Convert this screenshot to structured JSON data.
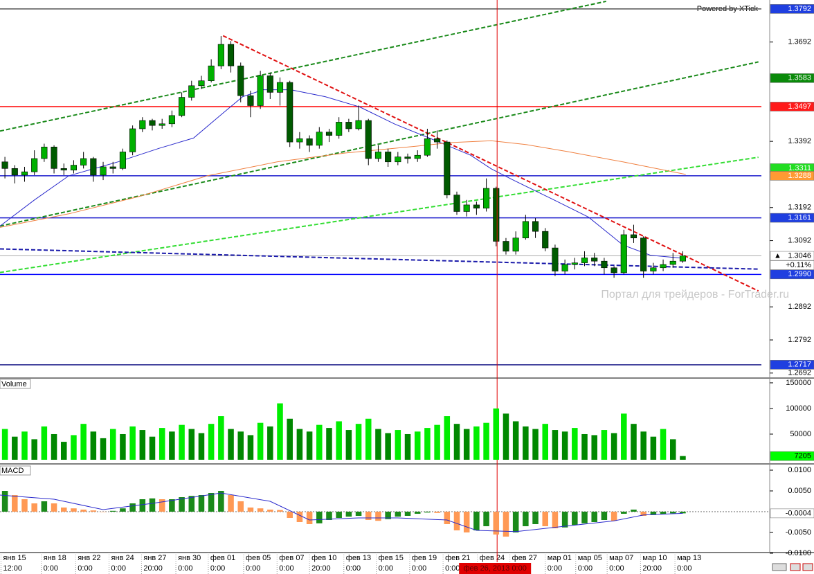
{
  "chart_data": [
    {
      "type": "candlestick",
      "credit": "Powered by XTick",
      "watermark": "Портал для трейдеров - ForTrader.ru",
      "xlim": [
        -0.5,
        77
      ],
      "xticks": [
        {
          "value": -0.4,
          "label": "янв 15"
        },
        {
          "value": 3.7,
          "label": "янв 18"
        },
        {
          "value": 7.2,
          "label": "янв 22"
        },
        {
          "value": 10.6,
          "label": "янв 24"
        },
        {
          "value": 13.9,
          "label": "янв 27"
        },
        {
          "value": 17.4,
          "label": "янв 30"
        },
        {
          "value": 20.7,
          "label": "фев 01"
        },
        {
          "value": 24.3,
          "label": "фев 05"
        },
        {
          "value": 27.7,
          "label": "фев 07"
        },
        {
          "value": 31,
          "label": "фев 10"
        },
        {
          "value": 34.5,
          "label": "фев 13"
        },
        {
          "value": 37.8,
          "label": "фев 15"
        },
        {
          "value": 41.2,
          "label": "фев 19"
        },
        {
          "value": 44.6,
          "label": "фев 21"
        },
        {
          "value": 48.1,
          "label": "фев 24"
        },
        {
          "value": 51.4,
          "label": "фев 27"
        },
        {
          "value": 55,
          "label": "мар 01"
        },
        {
          "value": 58.1,
          "label": "мар 05"
        },
        {
          "value": 61.3,
          "label": "мар 07"
        },
        {
          "value": 64.7,
          "label": "мар 10"
        },
        {
          "value": 68.2,
          "label": "мар 13"
        }
      ],
      "xticks_time": [
        {
          "value": -0.4,
          "label": "12:00"
        },
        {
          "value": 3.7,
          "label": "0:00"
        },
        {
          "value": 7.2,
          "label": "0:00"
        },
        {
          "value": 10.6,
          "label": "0:00"
        },
        {
          "value": 13.9,
          "label": "20:00"
        },
        {
          "value": 17.4,
          "label": "0:00"
        },
        {
          "value": 20.7,
          "label": "0:00"
        },
        {
          "value": 24.3,
          "label": "0:00"
        },
        {
          "value": 27.7,
          "label": "0:00"
        },
        {
          "value": 31,
          "label": "20:00"
        },
        {
          "value": 34.5,
          "label": "0:00"
        },
        {
          "value": 37.8,
          "label": "0:00"
        },
        {
          "value": 41.2,
          "label": "0:00"
        },
        {
          "value": 44.6,
          "label": "0:00"
        },
        {
          "value": 55,
          "label": "0:00"
        },
        {
          "value": 58.1,
          "label": "0:00"
        },
        {
          "value": 61.3,
          "label": "0:00"
        },
        {
          "value": 64.7,
          "label": "20:00"
        },
        {
          "value": 68.2,
          "label": "0:00"
        }
      ],
      "cursor": {
        "x": 50.1,
        "label": "фев 26, 2013 0:00",
        "color": "#e00000"
      },
      "ylim": [
        1.2679,
        1.3819
      ],
      "yticks": [
        1.3692,
        1.3392,
        1.3192,
        1.3092,
        1.2892,
        1.2792,
        1.2692
      ],
      "up_color": "#00b000",
      "down_color": "#005a00",
      "open": [
        1.333,
        1.331,
        1.329,
        1.33,
        1.334,
        1.3375,
        1.331,
        1.3305,
        1.332,
        1.334,
        1.329,
        1.3315,
        1.331,
        1.336,
        1.343,
        1.3455,
        1.344,
        1.3445,
        1.347,
        1.3525,
        1.356,
        1.3575,
        1.362,
        1.3685,
        1.362,
        1.353,
        1.35,
        1.359,
        1.354,
        1.357,
        1.339,
        1.34,
        1.338,
        1.342,
        1.341,
        1.345,
        1.343,
        1.3455,
        1.334,
        1.336,
        1.333,
        1.3345,
        1.334,
        1.335,
        1.34,
        1.339,
        1.323,
        1.318,
        1.32,
        1.319,
        1.325,
        1.309,
        1.306,
        1.31,
        1.315,
        1.312,
        1.307,
        1.3,
        1.302,
        1.3025,
        1.304,
        1.303,
        1.301,
        1.2995,
        1.311,
        1.31,
        1.3,
        1.301,
        1.302,
        1.303
      ],
      "high": [
        1.3345,
        1.332,
        1.3315,
        1.3365,
        1.3385,
        1.338,
        1.3325,
        1.3335,
        1.336,
        1.3345,
        1.333,
        1.333,
        1.337,
        1.344,
        1.3465,
        1.346,
        1.346,
        1.3485,
        1.354,
        1.3575,
        1.359,
        1.364,
        1.371,
        1.3695,
        1.363,
        1.3545,
        1.3605,
        1.36,
        1.3585,
        1.3575,
        1.342,
        1.341,
        1.3435,
        1.343,
        1.3465,
        1.346,
        1.35,
        1.346,
        1.338,
        1.337,
        1.336,
        1.3355,
        1.3365,
        1.343,
        1.3425,
        1.3395,
        1.324,
        1.3215,
        1.321,
        1.328,
        1.3255,
        1.31,
        1.312,
        1.317,
        1.316,
        1.313,
        1.308,
        1.3035,
        1.304,
        1.306,
        1.3055,
        1.304,
        1.3015,
        1.3125,
        1.314,
        1.3105,
        1.3025,
        1.3035,
        1.3055,
        1.306
      ],
      "low": [
        1.328,
        1.3265,
        1.327,
        1.329,
        1.333,
        1.3295,
        1.329,
        1.3295,
        1.331,
        1.327,
        1.3275,
        1.3295,
        1.3305,
        1.335,
        1.342,
        1.3425,
        1.343,
        1.3435,
        1.3465,
        1.3515,
        1.355,
        1.357,
        1.361,
        1.36,
        1.351,
        1.3465,
        1.349,
        1.352,
        1.35,
        1.3375,
        1.337,
        1.336,
        1.337,
        1.339,
        1.34,
        1.342,
        1.3425,
        1.332,
        1.333,
        1.3315,
        1.332,
        1.3325,
        1.333,
        1.3345,
        1.337,
        1.322,
        1.317,
        1.3165,
        1.317,
        1.318,
        1.3075,
        1.305,
        1.305,
        1.3095,
        1.31,
        1.306,
        1.2985,
        1.299,
        1.3005,
        1.3015,
        1.3015,
        1.299,
        1.298,
        1.299,
        1.3085,
        1.298,
        1.299,
        1.3,
        1.301,
        1.3025
      ],
      "close": [
        1.331,
        1.329,
        1.33,
        1.334,
        1.3375,
        1.331,
        1.3305,
        1.332,
        1.334,
        1.329,
        1.3315,
        1.331,
        1.336,
        1.343,
        1.3455,
        1.344,
        1.3445,
        1.347,
        1.3525,
        1.356,
        1.3575,
        1.362,
        1.3685,
        1.362,
        1.353,
        1.35,
        1.359,
        1.354,
        1.357,
        1.339,
        1.34,
        1.338,
        1.342,
        1.341,
        1.345,
        1.343,
        1.3455,
        1.334,
        1.336,
        1.333,
        1.3345,
        1.334,
        1.335,
        1.34,
        1.339,
        1.323,
        1.318,
        1.32,
        1.319,
        1.325,
        1.309,
        1.306,
        1.31,
        1.315,
        1.312,
        1.307,
        1.3,
        1.302,
        1.3025,
        1.304,
        1.303,
        1.301,
        1.2995,
        1.311,
        1.31,
        1.3,
        1.301,
        1.302,
        1.303,
        1.3046
      ],
      "last_marker": "▲",
      "change": "+0.11%",
      "levels": [
        {
          "value": 1.3792,
          "color": "#555555"
        },
        {
          "value": 1.3497,
          "color": "#ff0000"
        },
        {
          "value": 1.3288,
          "color": "#1a1acc"
        },
        {
          "value": 1.3161,
          "color": "#1a1acc"
        },
        {
          "value": 1.299,
          "color": "#0000ff"
        },
        {
          "value": 1.2717,
          "color": "#1a1a88"
        }
      ],
      "badges": [
        {
          "value": 1.3792,
          "color": "#1f3fe0"
        },
        {
          "value": 1.3583,
          "color": "#0a8a0a"
        },
        {
          "value": 1.3497,
          "color": "#ff1a1a"
        },
        {
          "value": 1.3311,
          "color": "#22dd22"
        },
        {
          "value": 1.3288,
          "color": "#ff9a33"
        },
        {
          "value": 1.3161,
          "color": "#1f3fe0"
        },
        {
          "value": 1.299,
          "label": "1.2990",
          "color": "#1f3fe0"
        },
        {
          "value": 1.2717,
          "color": "#1f3fe0"
        }
      ],
      "lines": [
        {
          "x": [
            -0.5,
            61.2
          ],
          "y": [
            1.3423,
            1.3815
          ],
          "color": "#1a8a1a",
          "dash": true
        },
        {
          "x": [
            -0.5,
            76.7
          ],
          "y": [
            1.3136,
            1.3632
          ],
          "color": "#1a8a1a",
          "dash": true
        },
        {
          "x": [
            -0.5,
            76.7
          ],
          "y": [
            1.2996,
            1.3344
          ],
          "color": "#33dd33",
          "dash": true
        },
        {
          "x": [
            22.2,
            76.7
          ],
          "y": [
            1.3711,
            1.294
          ],
          "color": "#e01010",
          "dash": true
        },
        {
          "x": [
            -0.5,
            76.7
          ],
          "y": [
            1.3067,
            1.3006
          ],
          "color": "#1a1aaa",
          "dash": true
        },
        {
          "x": [
            -0.5,
            3,
            6.5,
            11.5,
            15.7,
            19.2,
            22.1,
            24.2,
            26.3,
            29.1,
            32.6,
            36.1,
            39.7,
            43.2,
            47.4,
            49.5,
            51.6,
            55.9,
            59.4,
            62.9,
            65.7,
            69.3
          ],
          "y": [
            1.3136,
            1.3215,
            1.3288,
            1.333,
            1.3371,
            1.3402,
            1.3475,
            1.3527,
            1.3548,
            1.3548,
            1.3527,
            1.3496,
            1.3444,
            1.3402,
            1.335,
            1.3309,
            1.3277,
            1.3215,
            1.3163,
            1.3079,
            1.3048,
            1.3038
          ],
          "color": "#2a2acc"
        },
        {
          "x": [
            -0.5,
            6.5,
            13.6,
            20.6,
            27.7,
            34.7,
            41.8,
            45.3,
            49.5,
            53.1,
            57.3,
            62.9,
            69.3
          ],
          "y": [
            1.3132,
            1.3173,
            1.3225,
            1.3288,
            1.333,
            1.3357,
            1.3377,
            1.3388,
            1.3394,
            1.3382,
            1.3361,
            1.333,
            1.3292
          ],
          "color": "#f08040"
        }
      ]
    },
    {
      "type": "bar",
      "name": "Volume",
      "ylim": [
        0,
        158000
      ],
      "yticks": [
        150000,
        100000,
        50000
      ],
      "colors": [
        "#00ee00",
        "#008800"
      ],
      "badge_color": "#00ff00",
      "values": [
        60000,
        45000,
        55000,
        40000,
        65000,
        50000,
        35000,
        48000,
        70000,
        55000,
        42000,
        60000,
        50000,
        65000,
        58000,
        45000,
        62000,
        55000,
        68000,
        60000,
        52000,
        70000,
        85000,
        60000,
        55000,
        48000,
        72000,
        65000,
        110000,
        80000,
        60000,
        55000,
        68000,
        62000,
        75000,
        58000,
        70000,
        80000,
        60000,
        52000,
        58000,
        50000,
        55000,
        62000,
        68000,
        85000,
        70000,
        60000,
        65000,
        72000,
        100000,
        90000,
        75000,
        65000,
        60000,
        70000,
        58000,
        55000,
        62000,
        50000,
        48000,
        58000,
        52000,
        90000,
        70000,
        55000,
        45000,
        60000,
        40000,
        7205
      ]
    },
    {
      "type": "bar",
      "name": "MACD",
      "ylim": [
        -0.00967,
        0.01117
      ],
      "yticks": [
        {
          "value": 0.01,
          "label": "0.0100"
        },
        {
          "value": 0.005,
          "label": "0.0050"
        },
        {
          "value": -0.005,
          "label": "-0.0050"
        },
        {
          "value": -0.01,
          "label": "-0.0100"
        }
      ],
      "colors": [
        "#1a8a1a",
        "#ff9955"
      ],
      "badge_color": "#ffffff",
      "values": [
        0.005,
        0.004,
        0.003,
        0.002,
        0.0025,
        0.002,
        0.001,
        0.0008,
        0.0005,
        0.0003,
        0.0,
        0.0002,
        0.0008,
        0.002,
        0.003,
        0.0032,
        0.003,
        0.003,
        0.0035,
        0.0038,
        0.004,
        0.0045,
        0.005,
        0.004,
        0.0025,
        0.001,
        0.0008,
        0.0005,
        0.0004,
        -0.0015,
        -0.0025,
        -0.003,
        -0.0028,
        -0.002,
        -0.0015,
        -0.0012,
        -0.001,
        -0.002,
        -0.0022,
        -0.0018,
        -0.0012,
        -0.001,
        -0.0005,
        -0.0002,
        -0.0003,
        -0.003,
        -0.0045,
        -0.005,
        -0.0045,
        -0.0035,
        -0.0055,
        -0.006,
        -0.005,
        -0.0035,
        -0.003,
        -0.0035,
        -0.004,
        -0.0038,
        -0.0032,
        -0.0028,
        -0.0025,
        -0.002,
        -0.0022,
        -0.0005,
        0.0005,
        -0.001,
        -0.0008,
        -0.0006,
        -0.0004,
        -0.0004
      ],
      "lines": [
        {
          "x": [
            -0.5,
            5,
            10,
            15,
            22,
            27,
            31,
            36,
            40,
            45,
            48,
            52,
            57,
            62,
            65,
            69
          ],
          "y": [
            0.004,
            0.003,
            0.0005,
            0.002,
            0.0045,
            0.0025,
            -0.002,
            -0.0015,
            -0.0015,
            -0.002,
            -0.0045,
            -0.0048,
            -0.0035,
            -0.0022,
            -0.0008,
            -0.0004
          ],
          "color": "#2a2acc"
        }
      ]
    }
  ]
}
